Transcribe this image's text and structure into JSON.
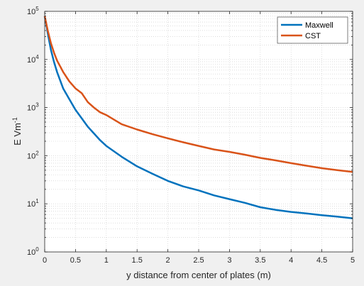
{
  "chart_data": {
    "type": "line",
    "title": "",
    "xlabel": "y distance from center of plates (m)",
    "ylabel_main": "E Vm",
    "ylabel_sup": "-1",
    "xlim": [
      0,
      5
    ],
    "ylim": [
      1,
      100000
    ],
    "yscale": "log",
    "grid": true,
    "legend_position": "top-right",
    "x_ticks": [
      0,
      0.5,
      1,
      1.5,
      2,
      2.5,
      3,
      3.5,
      4,
      4.5,
      5
    ],
    "x_tick_labels": [
      "0",
      "0.5",
      "1",
      "1.5",
      "2",
      "2.5",
      "3",
      "3.5",
      "4",
      "4.5",
      "5"
    ],
    "y_ticks": [
      {
        "value": 1,
        "base": "10",
        "exp": "0"
      },
      {
        "value": 10,
        "base": "10",
        "exp": "1"
      },
      {
        "value": 100,
        "base": "10",
        "exp": "2"
      },
      {
        "value": 1000,
        "base": "10",
        "exp": "3"
      },
      {
        "value": 10000,
        "base": "10",
        "exp": "4"
      },
      {
        "value": 100000,
        "base": "10",
        "exp": "5"
      }
    ],
    "series": [
      {
        "name": "Maxwell",
        "color": "#0072bd",
        "x": [
          0,
          0.05,
          0.1,
          0.15,
          0.2,
          0.3,
          0.4,
          0.5,
          0.6,
          0.7,
          0.8,
          0.9,
          1.0,
          1.25,
          1.5,
          1.75,
          2.0,
          2.25,
          2.5,
          2.75,
          3.0,
          3.25,
          3.5,
          3.75,
          4.0,
          4.25,
          4.5,
          4.75,
          5.0
        ],
        "y": [
          80000,
          35000,
          16000,
          9000,
          5500,
          2500,
          1500,
          900,
          600,
          400,
          290,
          210,
          160,
          95,
          60,
          42,
          30,
          23,
          19,
          15,
          12.5,
          10.5,
          8.5,
          7.5,
          6.8,
          6.3,
          5.8,
          5.4,
          5.0
        ]
      },
      {
        "name": "CST",
        "color": "#d95319",
        "x": [
          0,
          0.05,
          0.1,
          0.15,
          0.2,
          0.3,
          0.4,
          0.5,
          0.6,
          0.7,
          0.8,
          0.9,
          1.0,
          1.25,
          1.5,
          1.75,
          2.0,
          2.25,
          2.5,
          2.75,
          3.0,
          3.25,
          3.5,
          3.75,
          4.0,
          4.25,
          4.5,
          4.75,
          5.0
        ],
        "y": [
          80000,
          40000,
          22000,
          14000,
          9500,
          5500,
          3500,
          2500,
          2000,
          1300,
          1000,
          800,
          700,
          450,
          350,
          280,
          230,
          190,
          160,
          135,
          120,
          105,
          90,
          80,
          70,
          62,
          55,
          50,
          46
        ]
      }
    ]
  }
}
